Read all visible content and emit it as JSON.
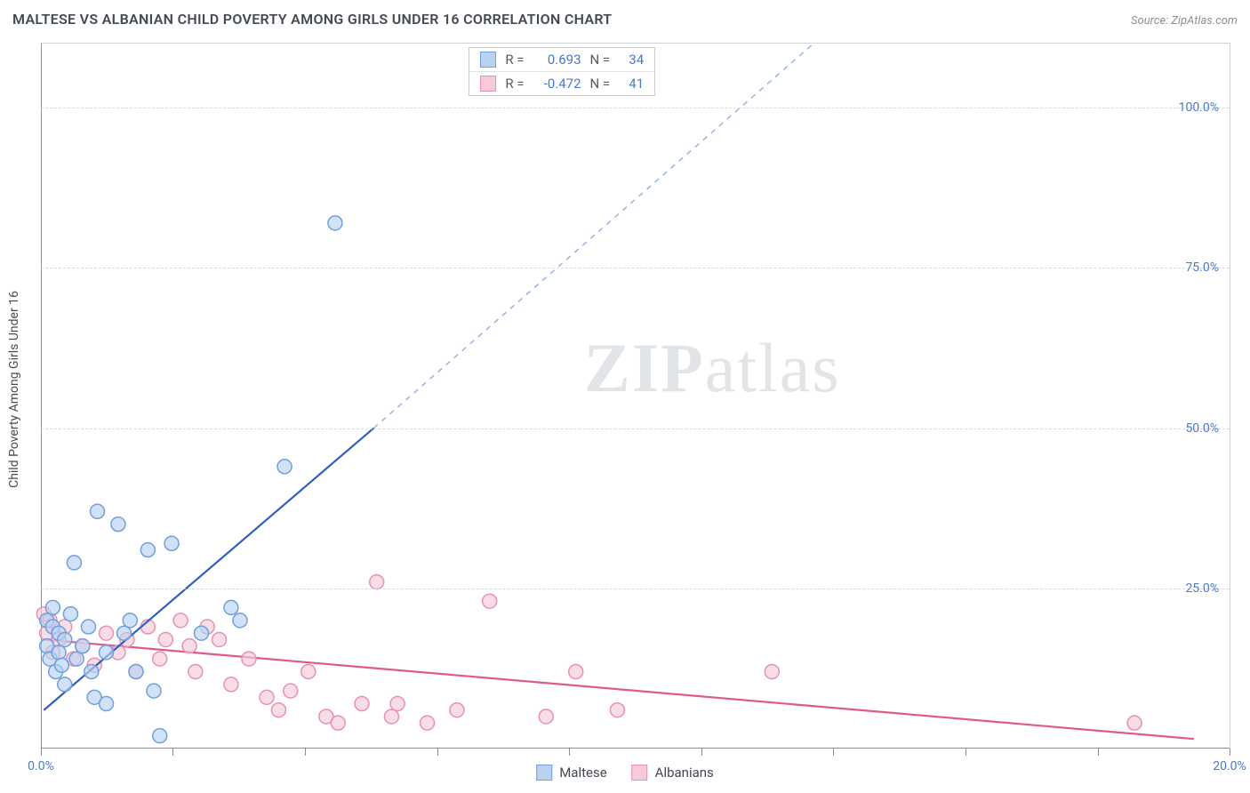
{
  "title": "MALTESE VS ALBANIAN CHILD POVERTY AMONG GIRLS UNDER 16 CORRELATION CHART",
  "source": "Source: ZipAtlas.com",
  "y_axis_label": "Child Poverty Among Girls Under 16",
  "watermark_a": "ZIP",
  "watermark_b": "atlas",
  "chart": {
    "type": "scatter",
    "xlim": [
      0,
      20
    ],
    "ylim": [
      0,
      110
    ],
    "y_ticks": [
      25,
      50,
      75,
      100
    ],
    "y_tick_labels": [
      "25.0%",
      "50.0%",
      "75.0%",
      "100.0%"
    ],
    "x_ticks": [
      0,
      2.22,
      4.44,
      6.67,
      8.89,
      11.11,
      13.33,
      15.56,
      17.78,
      20
    ],
    "x_tick_labels_shown": {
      "0": "0.0%",
      "20": "20.0%"
    },
    "background_color": "#ffffff",
    "grid_color": "#d7dadf",
    "axis_color": "#888d96",
    "tick_label_color": "#4a78d6"
  },
  "series": {
    "maltese": {
      "label": "Maltese",
      "fill": "#b9d2f2",
      "stroke": "#6f9fe0",
      "trend_color": "#2f5fc4",
      "trend_dash_color": "#9bb7e5",
      "marker_radius": 8,
      "stroke_width": 1.5,
      "R": "0.693",
      "N": "34",
      "points": [
        [
          0.1,
          20
        ],
        [
          0.1,
          16
        ],
        [
          0.15,
          14
        ],
        [
          0.2,
          19
        ],
        [
          0.2,
          22
        ],
        [
          0.25,
          12
        ],
        [
          0.3,
          18
        ],
        [
          0.3,
          15
        ],
        [
          0.35,
          13
        ],
        [
          0.4,
          17
        ],
        [
          0.4,
          10
        ],
        [
          0.5,
          21
        ],
        [
          0.56,
          29
        ],
        [
          0.6,
          14
        ],
        [
          0.7,
          16
        ],
        [
          0.8,
          19
        ],
        [
          0.85,
          12
        ],
        [
          0.9,
          8
        ],
        [
          0.95,
          37
        ],
        [
          1.1,
          15
        ],
        [
          1.1,
          7
        ],
        [
          1.3,
          35
        ],
        [
          1.4,
          18
        ],
        [
          1.5,
          20
        ],
        [
          1.6,
          12
        ],
        [
          1.8,
          31
        ],
        [
          1.9,
          9
        ],
        [
          2.0,
          2
        ],
        [
          2.2,
          32
        ],
        [
          2.7,
          18
        ],
        [
          3.2,
          22
        ],
        [
          3.35,
          20
        ],
        [
          4.1,
          44
        ],
        [
          4.95,
          82
        ]
      ],
      "trend_line": {
        "x1": 0.05,
        "y1": 6.0,
        "x2": 5.6,
        "y2": 50.0
      },
      "trend_dash": {
        "x1": 5.6,
        "y1": 50.0,
        "x2": 13.0,
        "y2": 110.0
      }
    },
    "albanians": {
      "label": "Albanians",
      "fill": "#f6cbd7",
      "stroke": "#e991ad",
      "trend_color": "#e15a84",
      "marker_radius": 8,
      "stroke_width": 1.5,
      "R": "-0.472",
      "N": "41",
      "points": [
        [
          0.05,
          21
        ],
        [
          0.1,
          18
        ],
        [
          0.15,
          20
        ],
        [
          0.2,
          15
        ],
        [
          0.3,
          17
        ],
        [
          0.4,
          19
        ],
        [
          0.55,
          14
        ],
        [
          0.7,
          16
        ],
        [
          0.9,
          13
        ],
        [
          1.1,
          18
        ],
        [
          1.3,
          15
        ],
        [
          1.45,
          17
        ],
        [
          1.6,
          12
        ],
        [
          1.8,
          19
        ],
        [
          2.0,
          14
        ],
        [
          2.1,
          17
        ],
        [
          2.35,
          20
        ],
        [
          2.5,
          16
        ],
        [
          2.6,
          12
        ],
        [
          2.8,
          19
        ],
        [
          3.0,
          17
        ],
        [
          3.2,
          10
        ],
        [
          3.5,
          14
        ],
        [
          3.8,
          8
        ],
        [
          4.0,
          6
        ],
        [
          4.2,
          9
        ],
        [
          4.5,
          12
        ],
        [
          4.8,
          5
        ],
        [
          5.0,
          4
        ],
        [
          5.4,
          7
        ],
        [
          5.65,
          26
        ],
        [
          5.9,
          5
        ],
        [
          6.0,
          7
        ],
        [
          6.5,
          4
        ],
        [
          7.0,
          6
        ],
        [
          7.55,
          23
        ],
        [
          8.5,
          5
        ],
        [
          9.0,
          12
        ],
        [
          9.7,
          6
        ],
        [
          12.3,
          12
        ],
        [
          18.4,
          4
        ]
      ],
      "trend_line": {
        "x1": 0.05,
        "y1": 17.0,
        "x2": 19.4,
        "y2": 1.5
      }
    }
  },
  "stats_box": {
    "r_label": "R =",
    "n_label": "N ="
  },
  "legend": {
    "maltese": "Maltese",
    "albanians": "Albanians"
  }
}
